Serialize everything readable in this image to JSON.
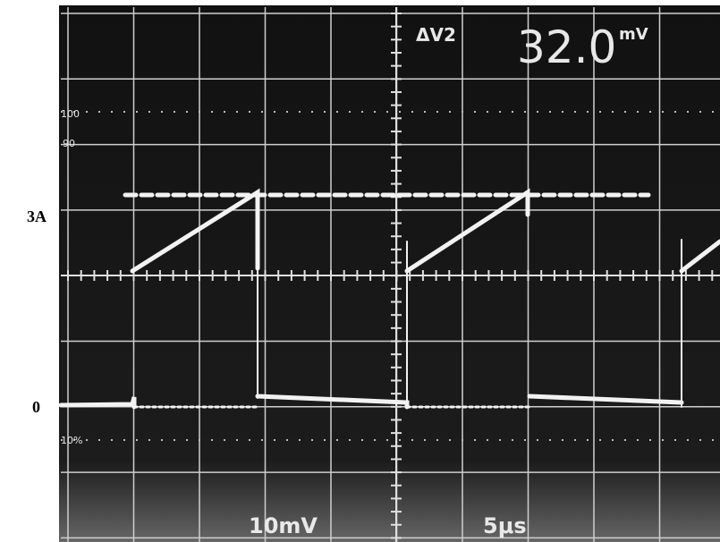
{
  "screen": {
    "readout_label": "ΔV2",
    "readout_value": "32.0",
    "readout_unit": "mV",
    "volts_per_div": "10mV",
    "time_per_div": "5μs",
    "marker_100": "100",
    "marker_90": "90",
    "marker_10": "10%"
  },
  "labels": {
    "current_level": "3A",
    "zero_level": "0"
  }
}
